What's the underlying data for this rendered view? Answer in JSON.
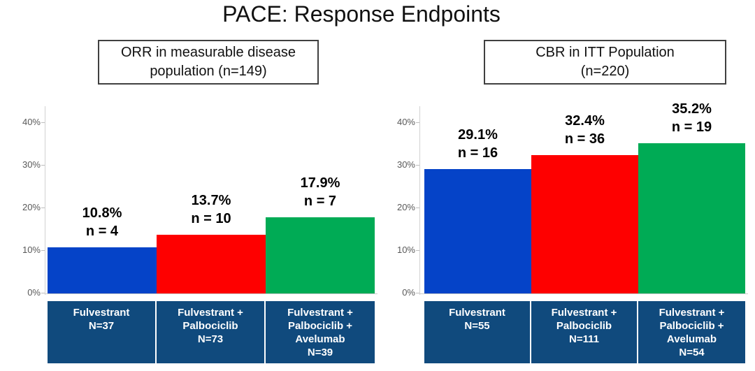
{
  "title": "PACE: Response Endpoints",
  "colors": {
    "bar_blue": "#0543c8",
    "bar_red": "#fe0000",
    "bar_green": "#00ab55",
    "band_navy": "#104a7d",
    "axis_line": "#cccccc",
    "tick_text": "#595959",
    "value_text": "#000000",
    "header_border": "#404040"
  },
  "chart_data": [
    {
      "type": "bar",
      "title": "ORR in measurable disease population (n=149)",
      "title_lines": [
        "ORR in measurable disease",
        "population (n=149)"
      ],
      "categories": [
        "Fulvestrant N=37",
        "Fulvestrant + Palbociclib N=73",
        "Fulvestrant + Palbociclib + Avelumab N=39"
      ],
      "category_lines": [
        [
          "Fulvestrant",
          "N=37"
        ],
        [
          "Fulvestrant +",
          "Palbociclib",
          "N=73"
        ],
        [
          "Fulvestrant +",
          "Palbociclib +",
          "Avelumab",
          "N=39"
        ]
      ],
      "values": [
        10.8,
        13.7,
        17.9
      ],
      "counts": [
        4,
        10,
        7
      ],
      "bar_labels": [
        [
          "10.8%",
          "n = 4"
        ],
        [
          "13.7%",
          "n = 10"
        ],
        [
          "17.9%",
          "n = 7"
        ]
      ],
      "bar_colors": [
        "#0543c8",
        "#fe0000",
        "#00ab55"
      ],
      "xlabel": "",
      "ylabel": "",
      "ylim": [
        0,
        40
      ],
      "yticks": [
        "0%",
        "10%",
        "20%",
        "30%",
        "40%"
      ],
      "grid": false,
      "legend": false
    },
    {
      "type": "bar",
      "title": "CBR in ITT Population (n=220)",
      "title_lines": [
        "CBR in ITT Population",
        "(n=220)"
      ],
      "categories": [
        "Fulvestrant N=55",
        "Fulvestrant + Palbociclib N=111",
        "Fulvestrant + Palbociclib + Avelumab N=54"
      ],
      "category_lines": [
        [
          "Fulvestrant",
          "N=55"
        ],
        [
          "Fulvestrant +",
          "Palbociclib",
          "N=111"
        ],
        [
          "Fulvestrant +",
          "Palbociclib +",
          "Avelumab",
          "N=54"
        ]
      ],
      "values": [
        29.1,
        32.4,
        35.2
      ],
      "counts": [
        16,
        36,
        19
      ],
      "bar_labels": [
        [
          "29.1%",
          "n = 16"
        ],
        [
          "32.4%",
          "n = 36"
        ],
        [
          "35.2%",
          "n = 19"
        ]
      ],
      "bar_colors": [
        "#0543c8",
        "#fe0000",
        "#00ab55"
      ],
      "xlabel": "",
      "ylabel": "",
      "ylim": [
        0,
        40
      ],
      "yticks": [
        "0%",
        "10%",
        "20%",
        "30%",
        "40%"
      ],
      "grid": false,
      "legend": false
    }
  ]
}
